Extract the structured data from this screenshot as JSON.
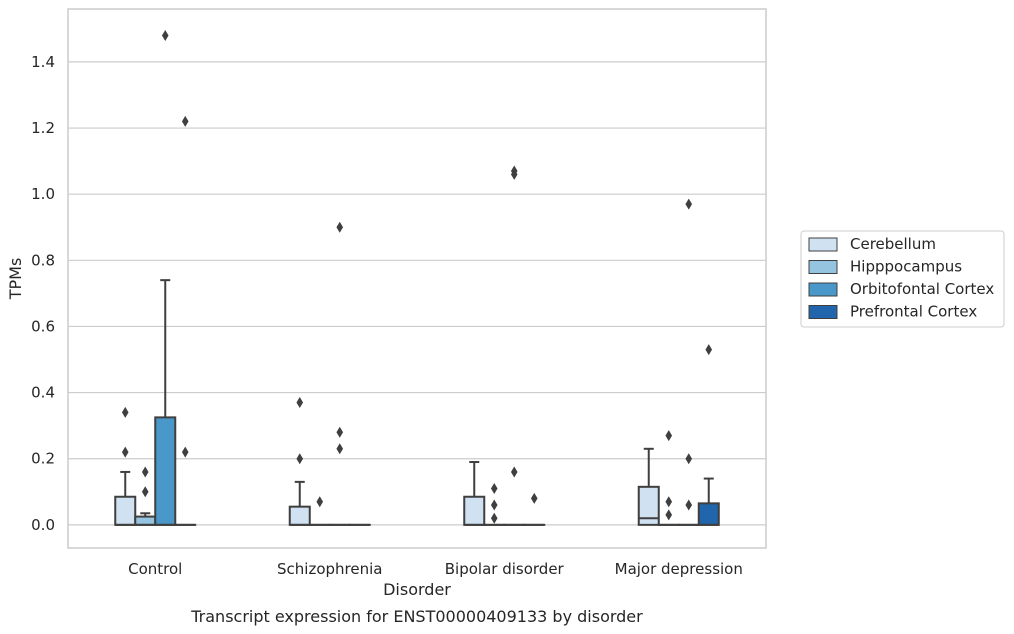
{
  "chart_data": {
    "type": "box",
    "title": "",
    "caption": "Transcript expression for ENST00000409133 by disorder",
    "xlabel": "Disorder",
    "ylabel": "TPMs",
    "ylim": [
      -0.07,
      1.56
    ],
    "yticks": [
      0.0,
      0.2,
      0.4,
      0.6,
      0.8,
      1.0,
      1.2,
      1.4
    ],
    "ytick_labels": [
      "0.0",
      "0.2",
      "0.4",
      "0.6",
      "0.8",
      "1.0",
      "1.2",
      "1.4"
    ],
    "grid": "horizontal",
    "legend_position": "right",
    "categories": [
      "Control",
      "Schizophrenia",
      "Bipolar disorder",
      "Major depression"
    ],
    "series": [
      {
        "name": "Cerebellum",
        "color": "#d0e1f2",
        "boxes": [
          {
            "q1": 0.0,
            "median": 0.0,
            "q3": 0.085,
            "whislo": 0.0,
            "whishi": 0.16,
            "fliers": [
              0.22,
              0.34
            ]
          },
          {
            "q1": 0.0,
            "median": 0.0,
            "q3": 0.055,
            "whislo": 0.0,
            "whishi": 0.13,
            "fliers": [
              0.2,
              0.37
            ]
          },
          {
            "q1": 0.0,
            "median": 0.0,
            "q3": 0.085,
            "whislo": 0.0,
            "whishi": 0.19,
            "fliers": []
          },
          {
            "q1": 0.0,
            "median": 0.02,
            "q3": 0.115,
            "whislo": 0.0,
            "whishi": 0.23,
            "fliers": []
          }
        ]
      },
      {
        "name": "Hipppocampus",
        "color": "#94c4df",
        "boxes": [
          {
            "q1": 0.0,
            "median": 0.0,
            "q3": 0.025,
            "whislo": 0.0,
            "whishi": 0.035,
            "fliers": [
              0.1,
              0.16
            ]
          },
          {
            "q1": 0.0,
            "median": 0.0,
            "q3": 0.0,
            "whislo": 0.0,
            "whishi": 0.0,
            "fliers": [
              0.07
            ]
          },
          {
            "q1": 0.0,
            "median": 0.0,
            "q3": 0.0,
            "whislo": 0.0,
            "whishi": 0.0,
            "fliers": [
              0.02,
              0.06,
              0.11
            ]
          },
          {
            "q1": 0.0,
            "median": 0.0,
            "q3": 0.0,
            "whislo": 0.0,
            "whishi": 0.0,
            "fliers": [
              0.03,
              0.07,
              0.27
            ]
          }
        ]
      },
      {
        "name": "Orbitofontal Cortex",
        "color": "#4a98c9",
        "boxes": [
          {
            "q1": 0.0,
            "median": 0.0,
            "q3": 0.325,
            "whislo": 0.0,
            "whishi": 0.74,
            "fliers": [
              1.48
            ]
          },
          {
            "q1": 0.0,
            "median": 0.0,
            "q3": 0.0,
            "whislo": 0.0,
            "whishi": 0.0,
            "fliers": [
              0.23,
              0.28,
              0.9
            ]
          },
          {
            "q1": 0.0,
            "median": 0.0,
            "q3": 0.0,
            "whislo": 0.0,
            "whishi": 0.0,
            "fliers": [
              0.16,
              1.06,
              1.07
            ]
          },
          {
            "q1": 0.0,
            "median": 0.0,
            "q3": 0.0,
            "whislo": 0.0,
            "whishi": 0.0,
            "fliers": [
              0.06,
              0.2,
              0.97
            ]
          }
        ]
      },
      {
        "name": "Prefrontal Cortex",
        "color": "#2166ac",
        "boxes": [
          {
            "q1": 0.0,
            "median": 0.0,
            "q3": 0.0,
            "whislo": 0.0,
            "whishi": 0.0,
            "fliers": [
              0.22,
              1.22
            ]
          },
          {
            "q1": 0.0,
            "median": 0.0,
            "q3": 0.0,
            "whislo": 0.0,
            "whishi": 0.0,
            "fliers": []
          },
          {
            "q1": 0.0,
            "median": 0.0,
            "q3": 0.0,
            "whislo": 0.0,
            "whishi": 0.0,
            "fliers": [
              0.08
            ]
          },
          {
            "q1": 0.0,
            "median": 0.0,
            "q3": 0.065,
            "whislo": 0.0,
            "whishi": 0.14,
            "fliers": [
              0.53
            ]
          }
        ]
      }
    ]
  }
}
